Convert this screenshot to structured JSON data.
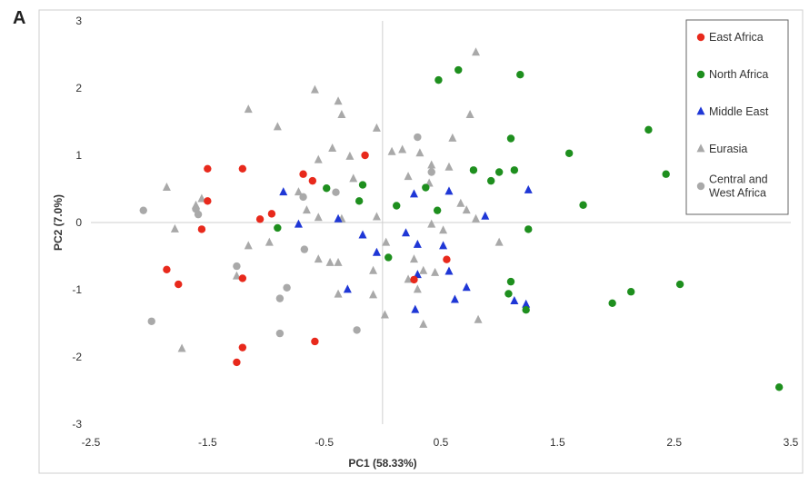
{
  "chart_data": {
    "type": "scatter",
    "panel_label": "A",
    "title": "",
    "xlabel": "PC1 (58.33%)",
    "ylabel": "PC2 (7.0%)",
    "xlim": [
      -2.5,
      3.5
    ],
    "ylim": [
      -3,
      3
    ],
    "xticks": [
      -2.5,
      -1.5,
      -0.5,
      0.5,
      1.5,
      2.5,
      3.5
    ],
    "xtick_labels": [
      "-2.5",
      "-1.5",
      "-0.5",
      "0.5",
      "1.5",
      "2.5",
      "3.5"
    ],
    "yticks": [
      -3,
      -2,
      -1,
      0,
      1,
      2,
      3
    ],
    "ytick_labels": [
      "-3",
      "-2",
      "-1",
      "0",
      "1",
      "2",
      "3"
    ],
    "grid": "zero lines only",
    "legend_position": "top-right",
    "series": [
      {
        "name": "East Africa",
        "marker": "circle",
        "color": "#e8291c",
        "points": [
          [
            -1.5,
            0.8
          ],
          [
            -1.2,
            0.8
          ],
          [
            -1.5,
            0.32
          ],
          [
            -1.55,
            -0.1
          ],
          [
            -1.85,
            -0.7
          ],
          [
            -1.75,
            -0.92
          ],
          [
            -1.2,
            -0.83
          ],
          [
            -1.05,
            0.05
          ],
          [
            -0.95,
            0.13
          ],
          [
            -0.68,
            0.72
          ],
          [
            -0.6,
            0.62
          ],
          [
            -0.15,
            1.0
          ],
          [
            -1.2,
            -1.86
          ],
          [
            -1.25,
            -2.08
          ],
          [
            -0.58,
            -1.77
          ],
          [
            0.27,
            -0.85
          ],
          [
            0.55,
            -0.55
          ]
        ]
      },
      {
        "name": "North Africa",
        "marker": "circle",
        "color": "#1e8f1e",
        "points": [
          [
            0.48,
            2.12
          ],
          [
            0.65,
            2.27
          ],
          [
            1.18,
            2.2
          ],
          [
            1.1,
            1.25
          ],
          [
            0.78,
            0.78
          ],
          [
            1.0,
            0.75
          ],
          [
            1.13,
            0.78
          ],
          [
            0.93,
            0.62
          ],
          [
            1.6,
            1.03
          ],
          [
            2.28,
            1.38
          ],
          [
            2.43,
            0.72
          ],
          [
            1.72,
            0.26
          ],
          [
            1.25,
            -0.1
          ],
          [
            0.37,
            0.52
          ],
          [
            0.47,
            0.18
          ],
          [
            0.12,
            0.25
          ],
          [
            -0.17,
            0.56
          ],
          [
            -0.2,
            0.32
          ],
          [
            -0.48,
            0.51
          ],
          [
            -0.9,
            -0.08
          ],
          [
            0.05,
            -0.52
          ],
          [
            1.1,
            -0.88
          ],
          [
            1.08,
            -1.06
          ],
          [
            1.23,
            -1.3
          ],
          [
            1.97,
            -1.2
          ],
          [
            2.13,
            -1.03
          ],
          [
            2.55,
            -0.92
          ],
          [
            3.4,
            -2.45
          ]
        ]
      },
      {
        "name": "Middle East",
        "marker": "triangle",
        "color": "#1f37d6",
        "points": [
          [
            -0.85,
            0.45
          ],
          [
            -0.72,
            -0.03
          ],
          [
            -0.38,
            0.05
          ],
          [
            -0.17,
            -0.19
          ],
          [
            -0.3,
            -1.0
          ],
          [
            -0.05,
            -0.45
          ],
          [
            0.2,
            -0.16
          ],
          [
            0.27,
            0.42
          ],
          [
            0.3,
            -0.33
          ],
          [
            0.3,
            -0.78
          ],
          [
            0.28,
            -1.3
          ],
          [
            0.52,
            -0.35
          ],
          [
            0.57,
            0.46
          ],
          [
            0.57,
            -0.73
          ],
          [
            0.62,
            -1.15
          ],
          [
            0.72,
            -0.97
          ],
          [
            0.88,
            0.09
          ],
          [
            1.13,
            -1.17
          ],
          [
            1.23,
            -1.22
          ],
          [
            1.25,
            0.48
          ]
        ]
      },
      {
        "name": "Eurasia",
        "marker": "triangle",
        "color": "#a9a9a9",
        "points": [
          [
            -1.85,
            0.52
          ],
          [
            -1.78,
            -0.1
          ],
          [
            -1.55,
            0.35
          ],
          [
            -1.6,
            0.25
          ],
          [
            -1.15,
            1.68
          ],
          [
            -0.9,
            1.42
          ],
          [
            -0.58,
            1.97
          ],
          [
            -0.38,
            1.8
          ],
          [
            -0.35,
            1.6
          ],
          [
            -0.05,
            1.4
          ],
          [
            -0.43,
            1.1
          ],
          [
            -0.28,
            0.98
          ],
          [
            -0.55,
            0.93
          ],
          [
            -0.25,
            0.65
          ],
          [
            -0.72,
            0.45
          ],
          [
            -0.65,
            0.18
          ],
          [
            -0.55,
            0.07
          ],
          [
            -0.35,
            0.05
          ],
          [
            -0.05,
            0.08
          ],
          [
            0.08,
            1.05
          ],
          [
            0.17,
            1.08
          ],
          [
            0.22,
            0.68
          ],
          [
            0.32,
            1.03
          ],
          [
            0.42,
            0.85
          ],
          [
            0.4,
            0.58
          ],
          [
            0.42,
            -0.03
          ],
          [
            0.35,
            -0.72
          ],
          [
            0.22,
            -0.85
          ],
          [
            0.27,
            -0.55
          ],
          [
            0.52,
            -0.12
          ],
          [
            0.57,
            0.82
          ],
          [
            0.6,
            1.25
          ],
          [
            0.75,
            1.6
          ],
          [
            0.8,
            2.53
          ],
          [
            0.67,
            0.28
          ],
          [
            0.72,
            0.18
          ],
          [
            0.8,
            0.05
          ],
          [
            1.0,
            -0.3
          ],
          [
            0.82,
            -1.45
          ],
          [
            0.35,
            -1.52
          ],
          [
            0.02,
            -1.38
          ],
          [
            0.3,
            -1.0
          ],
          [
            0.45,
            -0.75
          ],
          [
            0.03,
            -0.3
          ],
          [
            -0.08,
            -0.72
          ],
          [
            -0.08,
            -1.08
          ],
          [
            -0.38,
            -1.07
          ],
          [
            -0.45,
            -0.6
          ],
          [
            -0.55,
            -0.55
          ],
          [
            -0.38,
            -0.6
          ],
          [
            -0.97,
            -0.3
          ],
          [
            -1.15,
            -0.35
          ],
          [
            -1.25,
            -0.8
          ],
          [
            -1.72,
            -1.88
          ]
        ]
      },
      {
        "name": "Central and West Africa",
        "legend_lines": [
          "Central and",
          "West Africa"
        ],
        "marker": "circle",
        "color": "#a9a9a9",
        "points": [
          [
            -2.05,
            0.18
          ],
          [
            -1.58,
            0.12
          ],
          [
            -1.6,
            0.2
          ],
          [
            -1.25,
            -0.65
          ],
          [
            -0.88,
            -1.13
          ],
          [
            -0.82,
            -0.97
          ],
          [
            -0.88,
            -1.65
          ],
          [
            -0.67,
            -0.4
          ],
          [
            -0.22,
            -1.6
          ],
          [
            -0.4,
            0.45
          ],
          [
            0.3,
            1.27
          ],
          [
            0.42,
            0.75
          ],
          [
            -0.68,
            0.38
          ],
          [
            -1.98,
            -1.47
          ]
        ]
      }
    ]
  }
}
